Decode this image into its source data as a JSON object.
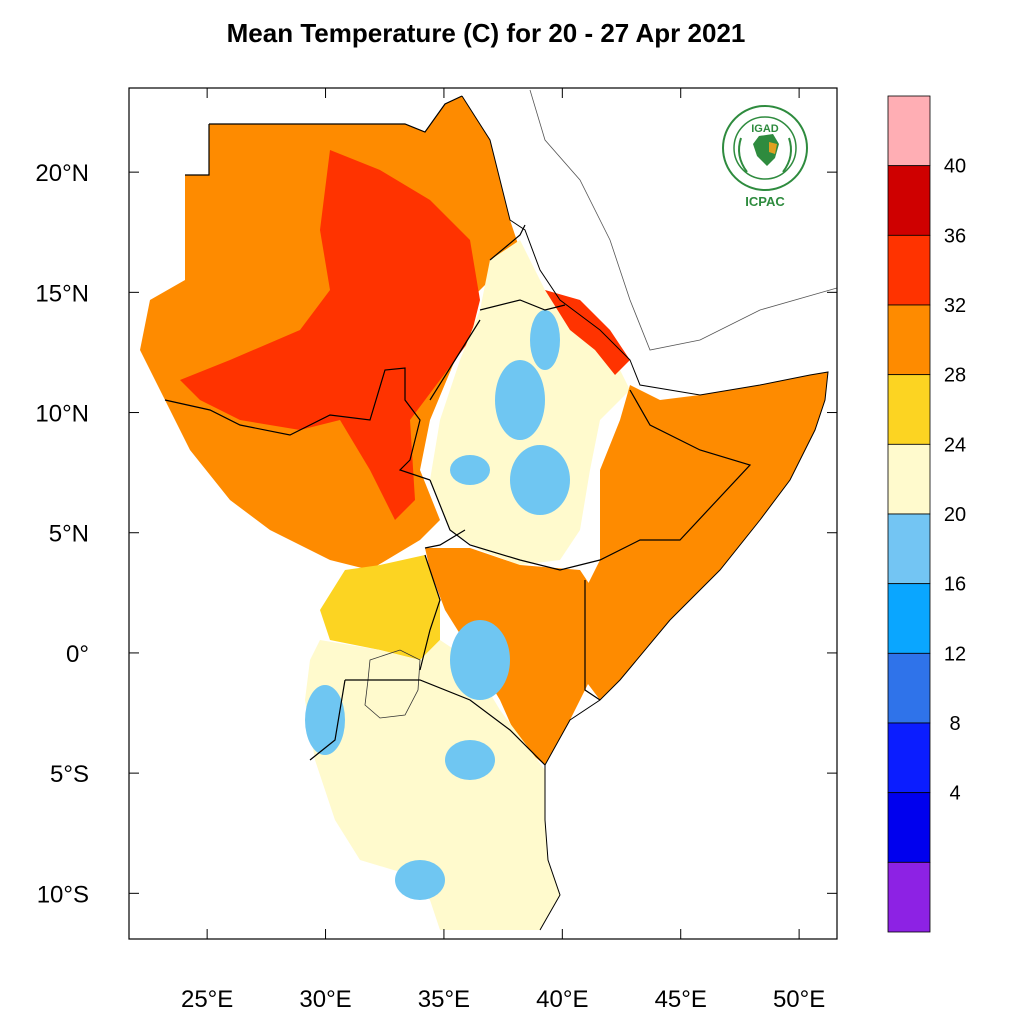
{
  "title": "Mean Temperature (C) for 20 - 27 Apr 2021",
  "logo": {
    "acronym": "IGAD",
    "center": "ICPAC",
    "ring_text": "INTERGOVERNMENTAL AUTHORITY ON DEVELOPMENT",
    "accent": "#2e8b3e"
  },
  "map": {
    "lon_range": [
      21.7,
      51.6
    ],
    "lat_range": [
      -11.9,
      23.5
    ],
    "lon_ticks": [
      25,
      30,
      35,
      40,
      45,
      50
    ],
    "lat_ticks": [
      20,
      15,
      10,
      5,
      0,
      -5,
      -10
    ],
    "lon_tick_labels": [
      "25°E",
      "30°E",
      "35°E",
      "40°E",
      "45°E",
      "50°E"
    ],
    "lat_tick_labels": [
      "20°N",
      "15°N",
      "10°N",
      "5°N",
      "0°",
      "5°S",
      "10°S"
    ],
    "region_colors": {
      "sudan": "#fe8b00",
      "hot_core": "#ff3300",
      "ethiopia_highlands": "#fffacd",
      "cool_spots": "#6fc6f2",
      "somalia": "#fe8b00",
      "tanzania": "#fffacd",
      "uganda": "#fcd422"
    }
  },
  "colorbar": {
    "labels": [
      "40",
      "36",
      "32",
      "28",
      "24",
      "20",
      "16",
      "12",
      "8",
      "4"
    ],
    "colors": [
      "#ffaeb4",
      "#cf0000",
      "#ff3300",
      "#fe8b00",
      "#fcd422",
      "#fffacd",
      "#73c5f3",
      "#0aa6ff",
      "#2f73ea",
      "#0b1dff",
      "#0000ee",
      "#8d22e4"
    ]
  }
}
